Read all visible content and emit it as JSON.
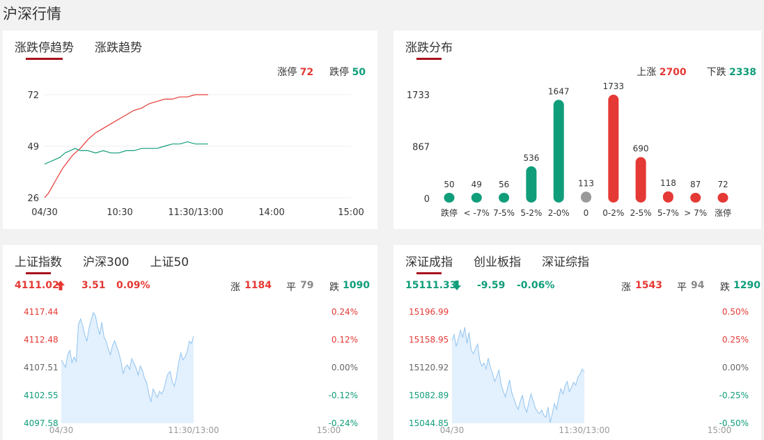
{
  "page": {
    "title": "沪深行情"
  },
  "colors": {
    "red": "#e53935",
    "green": "#0f9d7a",
    "grey": "#999999",
    "tab_underline": "#a8101c",
    "area_fill": "#e3f0fd",
    "area_line": "#90c4f0"
  },
  "trend_card": {
    "tabs": [
      {
        "label": "涨跌停趋势",
        "active": true
      },
      {
        "label": "涨跌趋势",
        "active": false
      }
    ],
    "limit_up_label": "涨停",
    "limit_up_value": "72",
    "limit_down_label": "跌停",
    "limit_down_value": "50"
  },
  "dist_card": {
    "tabs": [
      {
        "label": "涨跌分布",
        "active": true
      }
    ],
    "up_label": "上涨",
    "up_value": "2700",
    "down_label": "下跌",
    "down_value": "2338"
  },
  "sh_card": {
    "tabs": [
      {
        "label": "上证指数",
        "active": true
      },
      {
        "label": "沪深300",
        "active": false
      },
      {
        "label": "上证50",
        "active": false
      }
    ],
    "price": "4111.02",
    "change": "3.51",
    "pct": "0.09%",
    "direction_icon": "arrow-up-icon",
    "up_label": "涨",
    "up_value": "1184",
    "flat_label": "平",
    "flat_value": "79",
    "down_label": "跌",
    "down_value": "1090"
  },
  "sz_card": {
    "tabs": [
      {
        "label": "深证成指",
        "active": true
      },
      {
        "label": "创业板指",
        "active": false
      },
      {
        "label": "深证综指",
        "active": false
      }
    ],
    "price": "15111.33",
    "change": "-9.59",
    "pct": "-0.06%",
    "direction_icon": "arrow-down-icon",
    "up_label": "涨",
    "up_value": "1543",
    "flat_label": "平",
    "flat_value": "94",
    "down_label": "跌",
    "down_value": "1290"
  },
  "chart_data": [
    {
      "id": "limit-trend",
      "type": "line",
      "x_ticks": [
        "04/30",
        "10:30",
        "11:30/13:00",
        "14:00",
        "15:00"
      ],
      "y_ticks": [
        26,
        49,
        72
      ],
      "ylim": [
        26,
        72
      ],
      "x_range_minutes": 240,
      "grid": true,
      "series": [
        {
          "name": "涨停",
          "color": "#e53935",
          "points": [
            [
              0,
              26
            ],
            [
              3,
              28
            ],
            [
              6,
              31
            ],
            [
              10,
              35
            ],
            [
              14,
              39
            ],
            [
              18,
              42
            ],
            [
              22,
              45
            ],
            [
              28,
              48
            ],
            [
              34,
              52
            ],
            [
              40,
              55
            ],
            [
              46,
              57
            ],
            [
              52,
              59
            ],
            [
              58,
              61
            ],
            [
              64,
              63
            ],
            [
              70,
              65
            ],
            [
              76,
              66
            ],
            [
              82,
              68
            ],
            [
              88,
              69
            ],
            [
              94,
              70
            ],
            [
              100,
              70
            ],
            [
              106,
              71
            ],
            [
              112,
              71
            ],
            [
              118,
              72
            ],
            [
              124,
              72
            ],
            [
              128,
              72
            ]
          ]
        },
        {
          "name": "跌停",
          "color": "#0f9d7a",
          "points": [
            [
              0,
              41
            ],
            [
              4,
              42
            ],
            [
              8,
              43
            ],
            [
              12,
              44
            ],
            [
              16,
              46
            ],
            [
              20,
              47
            ],
            [
              24,
              48
            ],
            [
              28,
              47
            ],
            [
              34,
              47
            ],
            [
              40,
              46
            ],
            [
              46,
              47
            ],
            [
              52,
              46
            ],
            [
              58,
              46
            ],
            [
              64,
              47
            ],
            [
              70,
              47
            ],
            [
              76,
              48
            ],
            [
              82,
              48
            ],
            [
              88,
              48
            ],
            [
              94,
              49
            ],
            [
              100,
              50
            ],
            [
              106,
              50
            ],
            [
              112,
              51
            ],
            [
              118,
              50
            ],
            [
              124,
              50
            ],
            [
              128,
              50
            ]
          ]
        }
      ]
    },
    {
      "id": "distribution",
      "type": "bar",
      "categories": [
        "跌停",
        "< -7%",
        "7-5%",
        "5-2%",
        "2-0%",
        "0",
        "0-2%",
        "2-5%",
        "5-7%",
        "> 7%",
        "涨停"
      ],
      "values": [
        50,
        49,
        56,
        536,
        1647,
        113,
        1733,
        690,
        118,
        87,
        72
      ],
      "colors": [
        "#0f9d7a",
        "#0f9d7a",
        "#0f9d7a",
        "#0f9d7a",
        "#0f9d7a",
        "#999999",
        "#e53935",
        "#e53935",
        "#e53935",
        "#e53935",
        "#e53935"
      ],
      "y_ticks": [
        0,
        867,
        1733
      ],
      "ylim": [
        0,
        1733
      ]
    },
    {
      "id": "sh-index",
      "type": "area",
      "x_ticks": [
        "04/30",
        "11:30/13:00",
        "15:00"
      ],
      "y_ticks_left": [
        "4117.44",
        "4112.48",
        "4107.51",
        "4102.55",
        "4097.58"
      ],
      "y_ticks_right": [
        "0.24%",
        "0.12%",
        "0.00%",
        "-0.12%",
        "-0.24%"
      ],
      "tick_colors": [
        "#e53935",
        "#e53935",
        "#666666",
        "#0f9d7a",
        "#0f9d7a"
      ],
      "ylim": [
        4097.58,
        4117.44
      ],
      "x_range_minutes": 240,
      "values": [
        4108.9,
        4108.2,
        4107.6,
        4109.8,
        4110.6,
        4108.4,
        4109.4,
        4108.6,
        4115.1,
        4116.2,
        4115.1,
        4113.3,
        4112.2,
        4114.5,
        4116.0,
        4117.3,
        4116.8,
        4114.8,
        4113.4,
        4115.6,
        4113.0,
        4112.2,
        4110.9,
        4109.8,
        4111.4,
        4112.3,
        4111.2,
        4110.1,
        4108.6,
        4106.4,
        4107.6,
        4108.0,
        4107.2,
        4109.1,
        4108.3,
        4107.5,
        4106.2,
        4107.8,
        4107.0,
        4105.6,
        4104.8,
        4102.9,
        4101.4,
        4103.7,
        4103.0,
        4102.2,
        4103.3,
        4102.8,
        4103.5,
        4105.2,
        4106.4,
        4106.8,
        4105.0,
        4104.2,
        4105.9,
        4108.4,
        4110.1,
        4108.9,
        4109.4,
        4110.4,
        4112.2,
        4111.8,
        4113.1
      ]
    },
    {
      "id": "sz-index",
      "type": "area",
      "x_ticks": [
        "04/30",
        "11:30/13:00",
        "15:00"
      ],
      "y_ticks_left": [
        "15196.99",
        "15158.95",
        "15120.92",
        "15082.89",
        "15044.85"
      ],
      "y_ticks_right": [
        "0.50%",
        "0.25%",
        "0.00%",
        "-0.25%",
        "-0.50%"
      ],
      "tick_colors": [
        "#e53935",
        "#e53935",
        "#666666",
        "#0f9d7a",
        "#0f9d7a"
      ],
      "ylim": [
        15044.85,
        15196.99
      ],
      "x_range_minutes": 240,
      "values": [
        15158,
        15166,
        15150,
        15160,
        15172,
        15162,
        15176,
        15154,
        15169,
        15145,
        15140,
        15147,
        15153,
        15131,
        15123,
        15127,
        15119,
        15134,
        15121,
        15113,
        15102,
        15109,
        15118,
        15098,
        15089,
        15081,
        15093,
        15104,
        15087,
        15079,
        15070,
        15064,
        15075,
        15083,
        15068,
        15060,
        15073,
        15085,
        15076,
        15066,
        15061,
        15058,
        15063,
        15056,
        15053,
        15067,
        15046,
        15058,
        15072,
        15064,
        15080,
        15092,
        15085,
        15096,
        15102,
        15088,
        15094,
        15101,
        15097,
        15108,
        15112,
        15119,
        15115
      ]
    }
  ]
}
